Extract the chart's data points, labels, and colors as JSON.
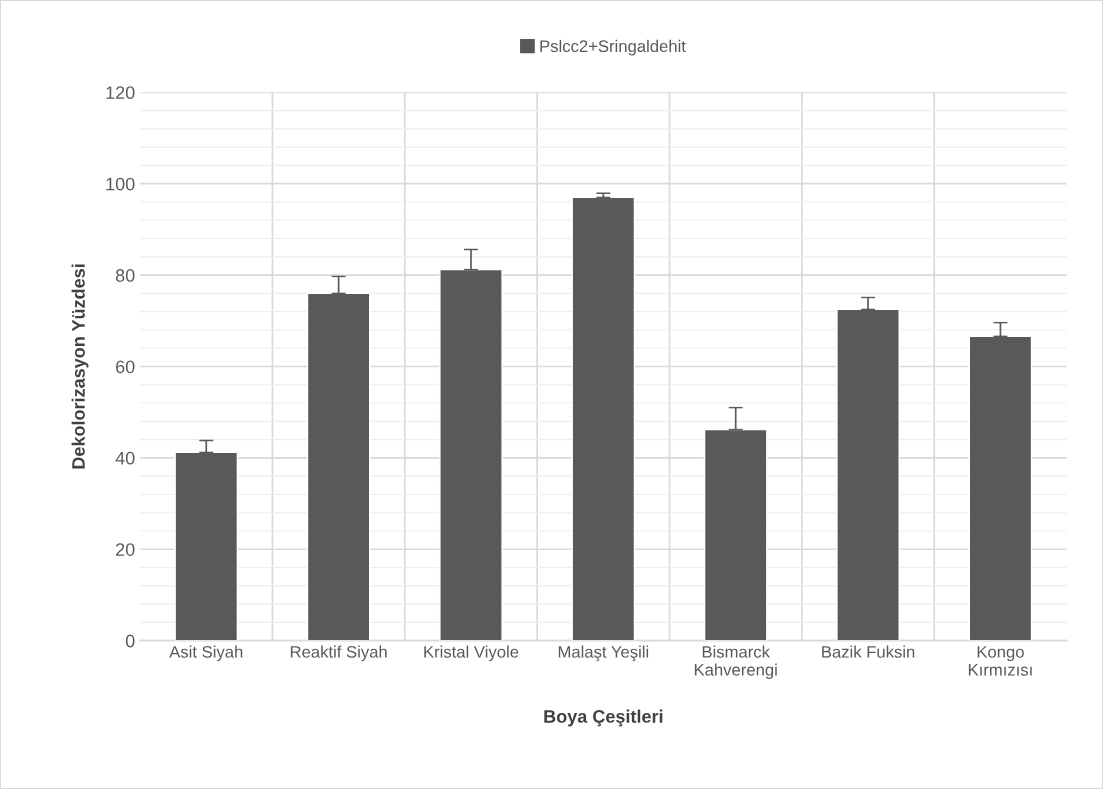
{
  "chart_data": {
    "type": "bar",
    "xlabel": "Boya Çeşitleri",
    "ylabel": "Dekolorizasyon Yüzdesi",
    "categories": [
      "Asit Siyah",
      "Reaktif Siyah",
      "Kristal Viyole",
      "Malaşt Yeşili",
      "Bismarck\nKahverengi",
      "Bazik Fuksin",
      "Kongo\nKırmızısı"
    ],
    "series": [
      {
        "name": "Pslcc2+Sringaldehit",
        "color": "#595959",
        "values": [
          41.2,
          76.0,
          81.2,
          97.0,
          46.2,
          72.5,
          66.6
        ],
        "errors": [
          [
            41.2,
            43.8
          ],
          [
            76.0,
            79.7
          ],
          [
            81.2,
            85.6
          ],
          [
            97.0,
            97.9
          ],
          [
            46.2,
            51.0
          ],
          [
            72.5,
            75.1
          ],
          [
            66.6,
            69.6
          ]
        ]
      }
    ],
    "ylim": [
      0,
      120
    ],
    "yticks": [
      0,
      20,
      40,
      60,
      80,
      100,
      120
    ],
    "grid": true,
    "legend": "top"
  }
}
